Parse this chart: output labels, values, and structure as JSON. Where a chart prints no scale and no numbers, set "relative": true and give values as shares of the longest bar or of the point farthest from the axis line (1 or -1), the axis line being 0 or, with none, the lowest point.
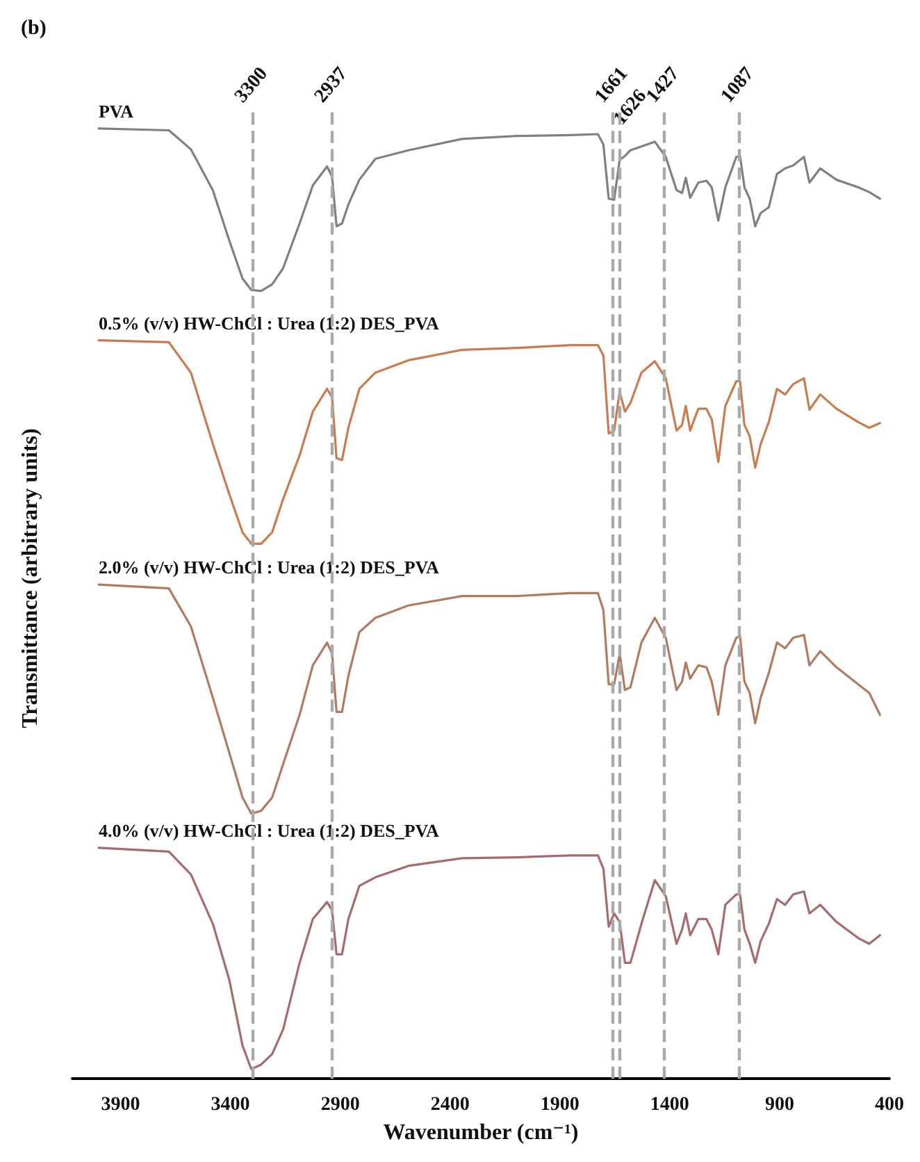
{
  "chart_data": {
    "type": "line",
    "title": "(b)",
    "xlabel": "Wavenumber (cm⁻¹)",
    "ylabel": "Transmittance (arbitrary units)",
    "relative": true,
    "xlim": [
      4120,
      400
    ],
    "xticks": [
      3900,
      3400,
      2900,
      2400,
      1900,
      1400,
      900,
      400
    ],
    "grid": false,
    "line_style": "solid",
    "marker": "none",
    "x": [
      4000,
      3680,
      3580,
      3480,
      3405,
      3345,
      3305,
      3260,
      3210,
      3160,
      3085,
      3025,
      2960,
      2937,
      2917,
      2892,
      2863,
      2813,
      2740,
      2590,
      2345,
      2095,
      1850,
      1727,
      1702,
      1678,
      1653,
      1628,
      1604,
      1579,
      1529,
      1468,
      1418,
      1369,
      1344,
      1327,
      1307,
      1270,
      1233,
      1209,
      1179,
      1147,
      1097,
      1080,
      1060,
      1036,
      1011,
      986,
      949,
      912,
      875,
      838,
      789,
      764,
      715,
      641,
      542,
      492,
      443
    ],
    "series": [
      {
        "name": "PVA",
        "color": "#808080",
        "values": [
          1.0,
          0.998,
          0.978,
          0.935,
          0.882,
          0.842,
          0.83,
          0.829,
          0.836,
          0.853,
          0.9,
          0.94,
          0.96,
          0.949,
          0.897,
          0.9,
          0.92,
          0.946,
          0.968,
          0.977,
          0.989,
          0.992,
          0.993,
          0.994,
          0.983,
          0.926,
          0.925,
          0.967,
          0.971,
          0.977,
          0.981,
          0.986,
          0.97,
          0.935,
          0.932,
          0.948,
          0.927,
          0.943,
          0.945,
          0.938,
          0.903,
          0.938,
          0.97,
          0.971,
          0.938,
          0.926,
          0.897,
          0.911,
          0.917,
          0.952,
          0.958,
          0.961,
          0.97,
          0.943,
          0.958,
          0.946,
          0.938,
          0.933,
          0.926
        ]
      },
      {
        "name": "0.5% (v/v) HW-ChCl : Urea (1:2) DES_PVA",
        "color": "#c97c50",
        "values": [
          0.777,
          0.775,
          0.743,
          0.668,
          0.615,
          0.575,
          0.563,
          0.563,
          0.575,
          0.61,
          0.656,
          0.702,
          0.726,
          0.717,
          0.653,
          0.651,
          0.685,
          0.726,
          0.743,
          0.756,
          0.767,
          0.769,
          0.772,
          0.772,
          0.761,
          0.679,
          0.682,
          0.723,
          0.702,
          0.711,
          0.743,
          0.755,
          0.737,
          0.682,
          0.688,
          0.708,
          0.682,
          0.705,
          0.705,
          0.694,
          0.649,
          0.708,
          0.734,
          0.734,
          0.688,
          0.676,
          0.643,
          0.668,
          0.691,
          0.726,
          0.72,
          0.731,
          0.737,
          0.704,
          0.72,
          0.705,
          0.691,
          0.685,
          0.69
        ]
      },
      {
        "name": "2.0% (v/v) HW-ChCl : Urea (1:2) DES_PVA",
        "color": "#b27b60",
        "values": [
          0.52,
          0.516,
          0.476,
          0.401,
          0.343,
          0.296,
          0.279,
          0.282,
          0.296,
          0.331,
          0.383,
          0.435,
          0.459,
          0.447,
          0.386,
          0.386,
          0.424,
          0.47,
          0.485,
          0.498,
          0.508,
          0.508,
          0.511,
          0.511,
          0.493,
          0.415,
          0.415,
          0.447,
          0.409,
          0.412,
          0.459,
          0.485,
          0.464,
          0.409,
          0.418,
          0.438,
          0.421,
          0.435,
          0.433,
          0.418,
          0.383,
          0.435,
          0.464,
          0.466,
          0.418,
          0.406,
          0.374,
          0.401,
          0.427,
          0.459,
          0.453,
          0.464,
          0.467,
          0.435,
          0.45,
          0.433,
          0.415,
          0.406,
          0.383
        ]
      },
      {
        "name": "4.0% (v/v) HW-ChCl : Urea (1:2) DES_PVA",
        "color": "#a66b6f",
        "values": [
          0.243,
          0.239,
          0.215,
          0.163,
          0.104,
          0.035,
          0.01,
          0.015,
          0.026,
          0.052,
          0.122,
          0.168,
          0.186,
          0.177,
          0.131,
          0.131,
          0.168,
          0.203,
          0.212,
          0.224,
          0.232,
          0.233,
          0.235,
          0.235,
          0.221,
          0.16,
          0.174,
          0.165,
          0.122,
          0.122,
          0.163,
          0.209,
          0.192,
          0.142,
          0.157,
          0.174,
          0.151,
          0.168,
          0.168,
          0.157,
          0.131,
          0.183,
          0.194,
          0.194,
          0.157,
          0.142,
          0.122,
          0.145,
          0.163,
          0.189,
          0.183,
          0.194,
          0.197,
          0.174,
          0.183,
          0.165,
          0.148,
          0.142,
          0.151
        ]
      }
    ],
    "ref_lines": [
      {
        "axis": "x",
        "value": 3300,
        "label": "3300",
        "color": "#a9a9a9",
        "line_style": "dashed"
      },
      {
        "axis": "x",
        "value": 2937,
        "label": "2937",
        "color": "#a9a9a9",
        "line_style": "dashed"
      },
      {
        "axis": "x",
        "value": 1661,
        "label": "1661",
        "color": "#a9a9a9",
        "line_style": "dashed"
      },
      {
        "axis": "x",
        "value": 1626,
        "label": "1626",
        "color": "#a9a9a9",
        "line_style": "dashed"
      },
      {
        "axis": "x",
        "value": 1427,
        "label": "1427",
        "color": "#a9a9a9",
        "line_style": "dashed"
      },
      {
        "axis": "x",
        "value": 1087,
        "label": "1087",
        "color": "#a9a9a9",
        "line_style": "dashed"
      }
    ]
  }
}
